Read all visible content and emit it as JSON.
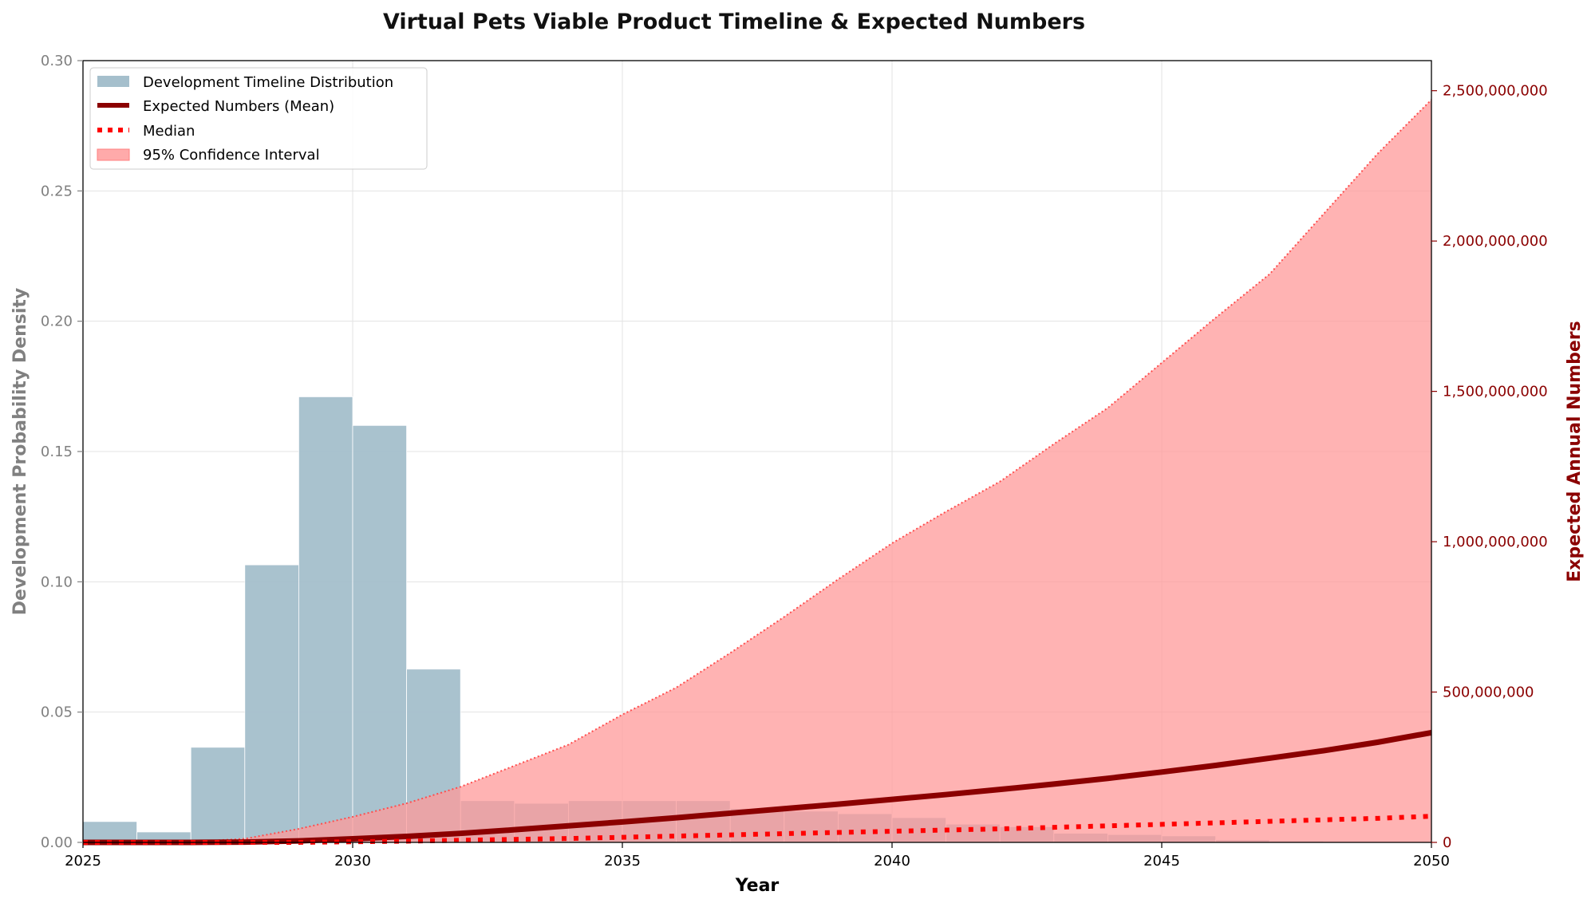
{
  "chart_data": {
    "type": "bar+line",
    "title": "Virtual Pets Viable Product Timeline & Expected Numbers",
    "xlabel": "Year",
    "ylabel_left": "Development Probability Density",
    "ylabel_right": "Expected Annual Numbers",
    "xlim": [
      2025,
      2050
    ],
    "ylim_left": [
      0,
      0.3
    ],
    "ylim_right": [
      0,
      2600000000
    ],
    "x_ticks": [
      "2025",
      "2030",
      "2035",
      "2040",
      "2045",
      "2050"
    ],
    "left_ticks": [
      "0.00",
      "0.05",
      "0.10",
      "0.15",
      "0.20",
      "0.25",
      "0.30"
    ],
    "right_ticks": [
      "0",
      "500,000,000",
      "1,000,000,000",
      "1,500,000,000",
      "2,000,000,000",
      "2,500,000,000"
    ],
    "grid": true,
    "legend_position": "upper-left",
    "legend": [
      "Development Timeline Distribution",
      "Expected Numbers (Mean)",
      "Median",
      "95% Confidence Interval"
    ],
    "colors": {
      "histogram": "#a5bfcc",
      "mean": "#8b0000",
      "median": "#ff0000",
      "ci_fill": "#ff9999",
      "left_axis": "#808080",
      "right_axis": "#8b0000"
    },
    "histogram": {
      "bin_start": [
        2025,
        2026,
        2027,
        2028,
        2029,
        2030,
        2031,
        2032,
        2033,
        2034,
        2035,
        2036,
        2037,
        2038,
        2039,
        2040,
        2041,
        2042,
        2043,
        2044,
        2045,
        2046,
        2047,
        2048,
        2049
      ],
      "density": [
        0.008,
        0.004,
        0.0365,
        0.1065,
        0.171,
        0.16,
        0.0665,
        0.016,
        0.015,
        0.016,
        0.016,
        0.016,
        0.013,
        0.012,
        0.011,
        0.0095,
        0.007,
        0.006,
        0.0035,
        0.003,
        0.0025,
        0.001,
        0.0005,
        0.0003,
        0.0002
      ]
    },
    "series": [
      {
        "name": "Expected Numbers (Mean)",
        "x": [
          2025,
          2026,
          2027,
          2028,
          2029,
          2030,
          2031,
          2032,
          2033,
          2034,
          2035,
          2036,
          2037,
          2038,
          2039,
          2040,
          2041,
          2042,
          2043,
          2044,
          2045,
          2046,
          2047,
          2048,
          2049,
          2050
        ],
        "values": [
          0,
          0,
          0,
          1000000,
          5000000,
          12000000,
          20000000,
          30000000,
          42000000,
          55000000,
          68000000,
          82000000,
          97000000,
          112000000,
          127000000,
          143000000,
          159000000,
          176000000,
          194000000,
          213000000,
          234000000,
          256000000,
          280000000,
          305000000,
          333000000,
          365000000
        ]
      },
      {
        "name": "Median",
        "x": [
          2025,
          2026,
          2027,
          2028,
          2029,
          2030,
          2031,
          2032,
          2033,
          2034,
          2035,
          2036,
          2037,
          2038,
          2039,
          2040,
          2041,
          2042,
          2043,
          2044,
          2045,
          2046,
          2047,
          2048,
          2049,
          2050
        ],
        "values": [
          0,
          0,
          0,
          0,
          0,
          2000000,
          4000000,
          7000000,
          10000000,
          13000000,
          17000000,
          21000000,
          25000000,
          29000000,
          33000000,
          37000000,
          41000000,
          45000000,
          50000000,
          55000000,
          60000000,
          65000000,
          70000000,
          75000000,
          80000000,
          87000000
        ]
      },
      {
        "name": "95% Confidence Interval (upper)",
        "x": [
          2025,
          2026,
          2027,
          2028,
          2029,
          2030,
          2031,
          2032,
          2033,
          2034,
          2035,
          2036,
          2037,
          2038,
          2039,
          2040,
          2041,
          2042,
          2043,
          2044,
          2045,
          2046,
          2047,
          2048,
          2049,
          2050
        ],
        "values": [
          0,
          0,
          2000000,
          12000000,
          45000000,
          85000000,
          130000000,
          185000000,
          255000000,
          325000000,
          425000000,
          515000000,
          630000000,
          750000000,
          875000000,
          995000000,
          1100000000,
          1200000000,
          1325000000,
          1445000000,
          1595000000,
          1745000000,
          1890000000,
          2090000000,
          2290000000,
          2470000000
        ]
      }
    ]
  }
}
